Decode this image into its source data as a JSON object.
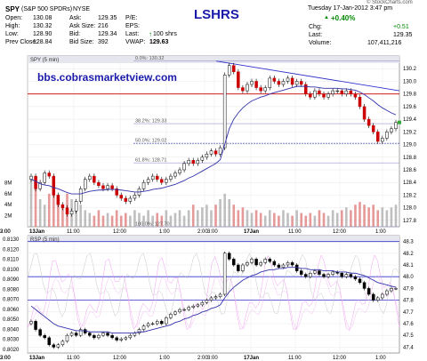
{
  "header": {
    "symbol": "SPY",
    "name": "(S&P 500 SPDRs)",
    "exchange": "NYSE",
    "brand": "LSHRS",
    "datetime": "Tuesday 17-Jan-2012 3:47 pm",
    "copyright": "© StockCharts.com",
    "watermark": "bbs.cobrasmarketview.com",
    "quote": [
      [
        "Open:",
        "130.08",
        "Ask:",
        "129.35",
        "P/E:",
        ""
      ],
      [
        "High:",
        "130.32",
        "Ask Size:",
        "216",
        "EPS:",
        ""
      ],
      [
        "Low:",
        "128.90",
        "Bid:",
        "129.34",
        "Last:",
        "100 shrs"
      ],
      [
        "Prev Close:",
        "128.84",
        "Bid Size:",
        "392",
        "VWAP:",
        "129.63"
      ]
    ],
    "change_pct": "+0.40%",
    "chg_label": "Chg:",
    "chg_value": "+0.51",
    "last_label": "Last:",
    "last_value": "129.35",
    "volume_label": "Volume:",
    "volume_value": "107,411,216"
  },
  "colors": {
    "up": "#000000",
    "down": "#cc0000",
    "ma": "#3333aa",
    "ref": "#3333cc",
    "fib": "#000099",
    "red_line": "#cc0000"
  },
  "chart_data": [
    {
      "type": "candlestick",
      "title": "SPY (5 min)",
      "ylim": [
        127.7,
        130.4
      ],
      "y_ticks": [
        127.8,
        128.0,
        128.2,
        128.4,
        128.6,
        128.8,
        129.0,
        129.2,
        129.4,
        129.6,
        129.8,
        130.0,
        130.2
      ],
      "x_tick_labels": [
        "13Jan",
        "11:00",
        "12:00",
        "1:00",
        "2:00",
        "3:00",
        "17Jan",
        "11:00",
        "12:00",
        "1:00",
        "2:00",
        "3:00"
      ],
      "annotations": [
        "0.0%: 130.32",
        "38.2%: 129.33",
        "50.0%: 129.02",
        "61.8%: 128.71",
        "100.0%: 127.70"
      ],
      "fib_levels": [
        130.32,
        129.33,
        129.02,
        128.71,
        127.7
      ],
      "horizontal_line": 129.8,
      "volume_axis_labels": [
        "8M",
        "6M",
        "4M",
        "2M"
      ],
      "close": [
        128.5,
        128.3,
        128.4,
        128.55,
        128.5,
        128.2,
        128.05,
        128.0,
        127.9,
        127.95,
        128.1,
        128.3,
        128.45,
        128.5,
        128.4,
        128.35,
        128.3,
        128.35,
        128.3,
        128.2,
        128.15,
        128.1,
        128.15,
        128.2,
        128.3,
        128.4,
        128.45,
        128.5,
        128.45,
        128.4,
        128.45,
        128.5,
        128.55,
        128.6,
        128.7,
        128.75,
        128.7,
        128.75,
        128.8,
        128.85,
        128.9,
        128.85,
        128.95,
        130.1,
        130.25,
        130.15,
        129.9,
        129.85,
        129.95,
        130.0,
        129.9,
        129.85,
        129.9,
        130.05,
        130.0,
        129.95,
        130.0,
        130.05,
        129.95,
        130.0,
        129.95,
        129.8,
        129.75,
        129.85,
        129.8,
        129.75,
        129.8,
        129.85,
        129.85,
        129.8,
        129.85,
        129.8,
        129.75,
        129.6,
        129.4,
        129.3,
        129.2,
        129.05,
        129.1,
        129.2,
        129.25,
        129.35
      ],
      "moving_average": [
        128.45,
        128.42,
        128.38,
        128.36,
        128.35,
        128.32,
        128.3,
        128.27,
        128.24,
        128.22,
        128.22,
        128.22,
        128.24,
        128.26,
        128.27,
        128.28,
        128.28,
        128.29,
        128.29,
        128.29,
        128.28,
        128.27,
        128.26,
        128.25,
        128.25,
        128.26,
        128.27,
        128.29,
        128.3,
        128.31,
        128.33,
        128.35,
        128.37,
        128.4,
        128.43,
        128.47,
        128.5,
        128.54,
        128.58,
        128.62,
        128.66,
        128.7,
        128.76,
        129.0,
        129.25,
        129.4,
        129.5,
        129.58,
        129.64,
        129.69,
        129.72,
        129.75,
        129.77,
        129.8,
        129.82,
        129.84,
        129.86,
        129.88,
        129.9,
        129.92,
        129.92,
        129.92,
        129.91,
        129.91,
        129.9,
        129.89,
        129.89,
        129.89,
        129.89,
        129.88,
        129.88,
        129.87,
        129.86,
        129.83,
        129.79,
        129.74,
        129.69,
        129.63,
        129.58,
        129.54,
        129.5,
        129.47
      ],
      "volume_millions": [
        9,
        8,
        5,
        4,
        6,
        7,
        5,
        4,
        6,
        5,
        3,
        4,
        3,
        2.5,
        2,
        3,
        2,
        2.5,
        2,
        3,
        2,
        2.5,
        2,
        3,
        2.5,
        2,
        3,
        2,
        2.5,
        2,
        3,
        2,
        2.5,
        3,
        2,
        3,
        4,
        3,
        3.5,
        4,
        3,
        4,
        5,
        6,
        5,
        4,
        3,
        3.5,
        3,
        2.5,
        3,
        2.5,
        2,
        3,
        2.5,
        2,
        3,
        2.5,
        2,
        3,
        2.5,
        2,
        2.5,
        2,
        3,
        2.5,
        2,
        3,
        2.5,
        3,
        3.5,
        3,
        4,
        4.5,
        4,
        3.5,
        4,
        3,
        3.5,
        3,
        3.5,
        4
      ]
    },
    {
      "type": "candlestick",
      "title": "RSP (5 min)",
      "ylim": [
        47.35,
        48.35
      ],
      "y_ticks_right": [
        47.4,
        47.5,
        47.6,
        47.7,
        47.8,
        47.9,
        48.0,
        48.1,
        48.2,
        48.3
      ],
      "y_ticks_left": [
        "0.8020",
        "0.8030",
        "0.8040",
        "0.8050",
        "0.8060",
        "0.8070",
        "0.8080",
        "0.8090",
        "0.8100",
        "0.8110",
        "0.8120",
        "0.8130"
      ],
      "horizontal_lines": [
        48.3,
        48.0,
        47.8
      ],
      "x_tick_labels": [
        "13Jan",
        "11:00",
        "12:00",
        "1:00",
        "2:00",
        "3:00",
        "17Jan",
        "11:00",
        "12:00",
        "1:00",
        "2:00",
        "3:00"
      ],
      "close": [
        47.62,
        47.55,
        47.5,
        47.48,
        47.42,
        47.4,
        47.42,
        47.45,
        47.5,
        47.52,
        47.5,
        47.55,
        47.52,
        47.5,
        47.48,
        47.5,
        47.52,
        47.5,
        47.48,
        47.46,
        47.47,
        47.48,
        47.5,
        47.52,
        47.55,
        47.58,
        47.6,
        47.6,
        47.62,
        47.6,
        47.65,
        47.68,
        47.7,
        47.72,
        47.72,
        47.74,
        47.75,
        47.76,
        47.78,
        47.8,
        47.82,
        47.83,
        47.85,
        48.2,
        48.15,
        48.1,
        48.05,
        48.1,
        48.12,
        48.15,
        48.1,
        48.12,
        48.15,
        48.13,
        48.1,
        48.08,
        48.1,
        48.12,
        48.1,
        48.05,
        48.02,
        48.0,
        48.03,
        48.05,
        48.02,
        48.0,
        48.02,
        48.04,
        48.03,
        48.0,
        48.02,
        48.0,
        47.98,
        47.95,
        47.9,
        47.85,
        47.8,
        47.82,
        47.85,
        47.88,
        47.9,
        47.9
      ],
      "moving_average": [
        47.75,
        47.72,
        47.69,
        47.66,
        47.63,
        47.6,
        47.58,
        47.57,
        47.56,
        47.55,
        47.54,
        47.54,
        47.54,
        47.53,
        47.53,
        47.53,
        47.53,
        47.53,
        47.52,
        47.52,
        47.52,
        47.52,
        47.52,
        47.52,
        47.53,
        47.53,
        47.54,
        47.55,
        47.56,
        47.57,
        47.58,
        47.59,
        47.61,
        47.62,
        47.64,
        47.65,
        47.67,
        47.68,
        47.7,
        47.71,
        47.73,
        47.74,
        47.76,
        47.82,
        47.87,
        47.91,
        47.94,
        47.97,
        47.99,
        48.01,
        48.02,
        48.04,
        48.05,
        48.06,
        48.06,
        48.07,
        48.07,
        48.08,
        48.08,
        48.08,
        48.07,
        48.07,
        48.06,
        48.06,
        48.06,
        48.05,
        48.05,
        48.05,
        48.04,
        48.04,
        48.04,
        48.03,
        48.03,
        48.02,
        48.01,
        47.99,
        47.97,
        47.95,
        47.94,
        47.93,
        47.92,
        47.91
      ]
    }
  ]
}
